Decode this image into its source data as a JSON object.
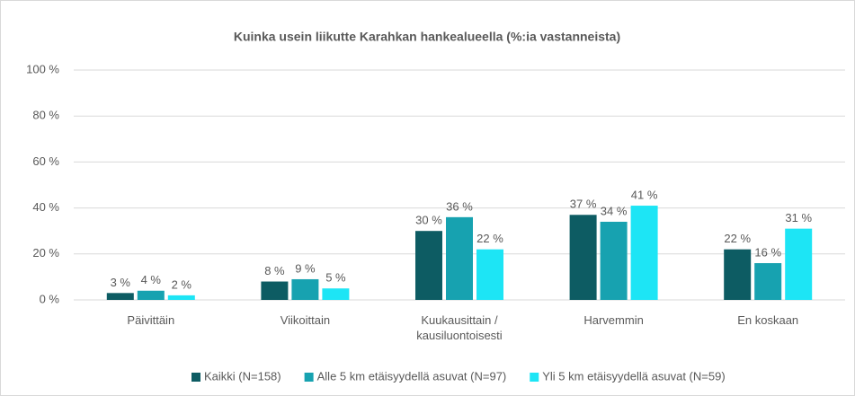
{
  "chart_data": {
    "type": "bar",
    "title": "Kuinka usein liikutte Karahkan hankealueella (%:ia vastanneista)",
    "categories": [
      "Päivittäin",
      "Viikoittain",
      "Kuukausittain / kausiluontoisesti",
      "Harvemmin",
      "En koskaan"
    ],
    "series": [
      {
        "name": "Kaikki (N=158)",
        "color": "#0d5c63",
        "values": [
          3,
          8,
          30,
          37,
          22
        ],
        "value_labels": [
          "3 %",
          "8 %",
          "30 %",
          "37 %",
          "22 %"
        ]
      },
      {
        "name": "Alle 5 km etäisyydellä asuvat (N=97)",
        "color": "#17a2b0",
        "values": [
          4,
          9,
          36,
          34,
          16
        ],
        "value_labels": [
          "4 %",
          "9 %",
          "36 %",
          "34 %",
          "16 %"
        ]
      },
      {
        "name": "Yli 5 km etäisyydellä asuvat (N=59)",
        "color": "#1de5f5",
        "values": [
          2,
          5,
          22,
          41,
          31
        ],
        "value_labels": [
          "2 %",
          "5 %",
          "22 %",
          "41 %",
          "31 %"
        ]
      }
    ],
    "ylim": [
      0,
      100
    ],
    "yticks": [
      {
        "value": 0,
        "label": "0 %"
      },
      {
        "value": 20,
        "label": "20 %"
      },
      {
        "value": 40,
        "label": "40 %"
      },
      {
        "value": 60,
        "label": "60 %"
      },
      {
        "value": 80,
        "label": "80 %"
      },
      {
        "value": 100,
        "label": "100 %"
      }
    ],
    "grid": true,
    "legend": "bottom"
  }
}
